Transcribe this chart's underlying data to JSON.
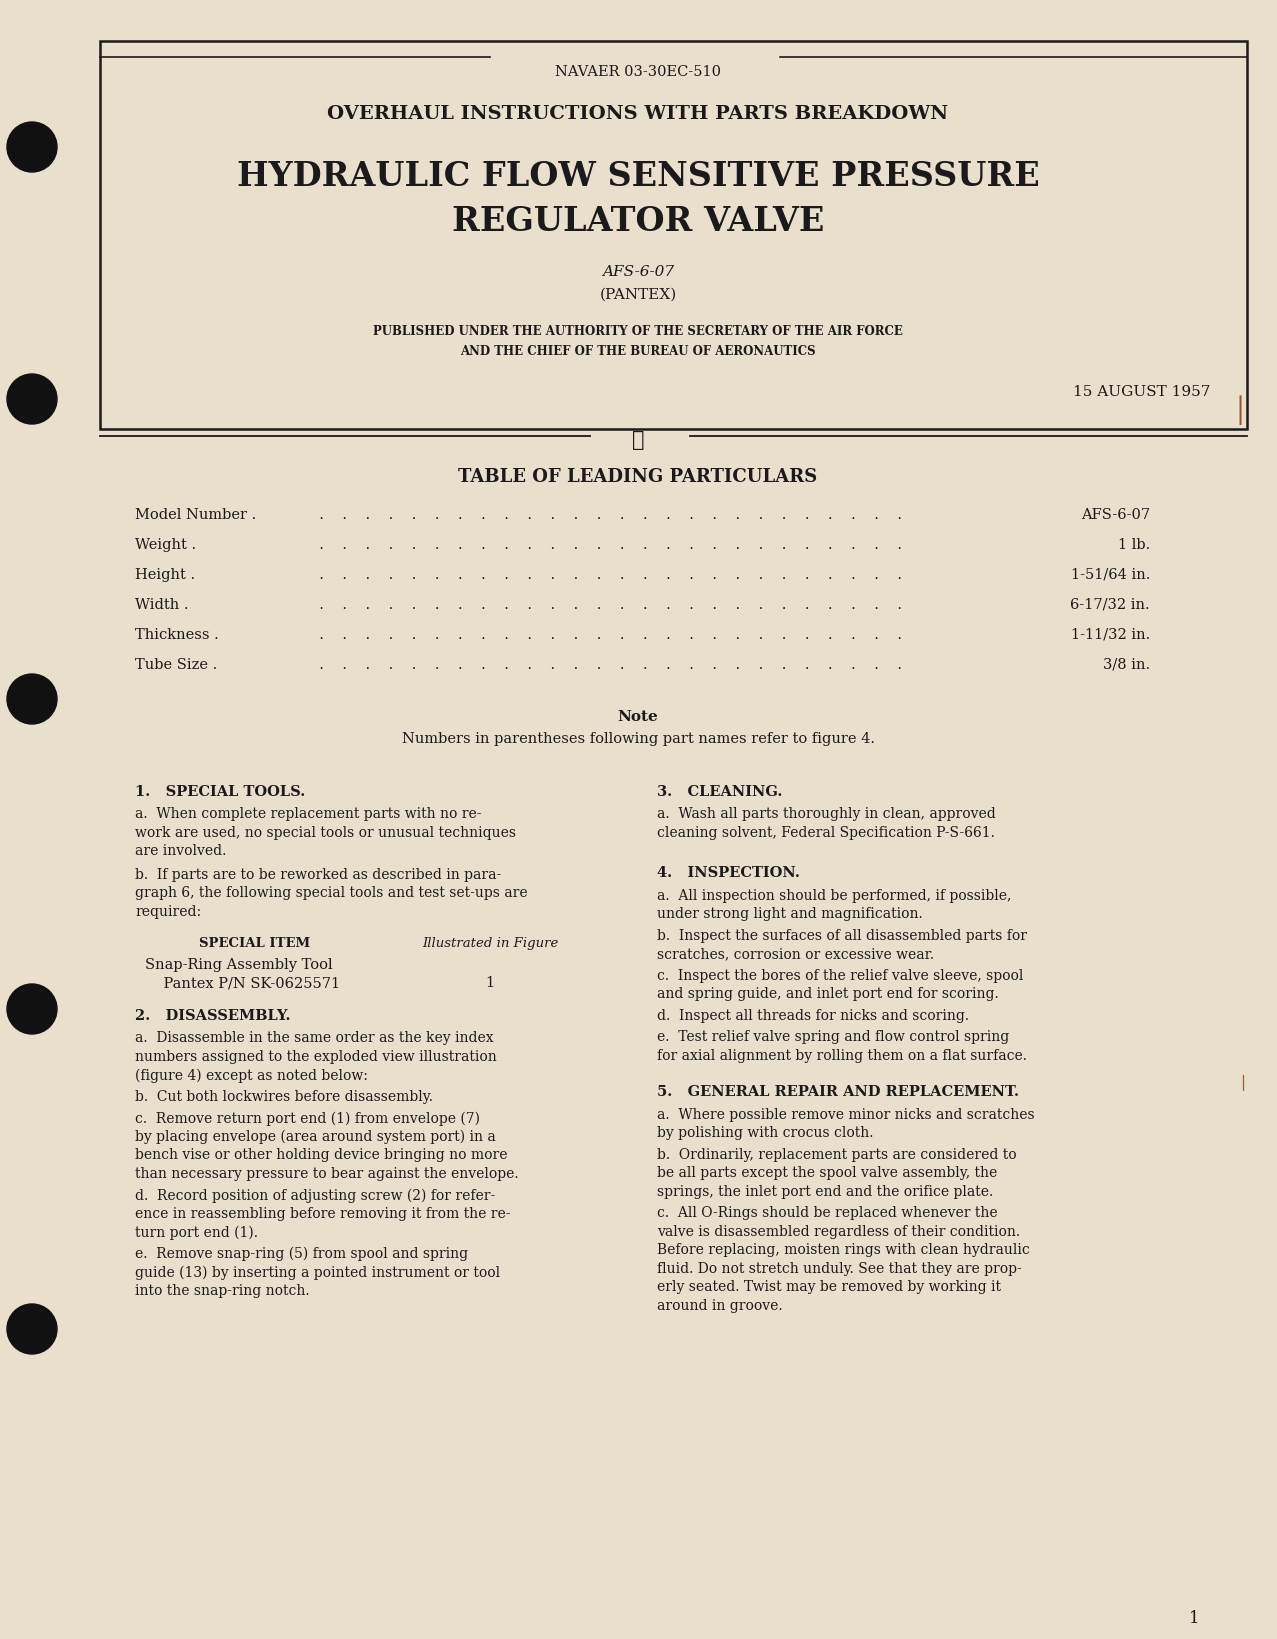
{
  "page_bg": "#e8e0cc",
  "text_color": "#1a1a1a",
  "border_color": "#1a1a1a",
  "header_doc_num": "NAVAER 03-30EC-510",
  "title_line1": "OVERHAUL INSTRUCTIONS WITH PARTS BREAKDOWN",
  "title_line2": "HYDRAULIC FLOW SENSITIVE PRESSURE",
  "title_line3": "REGULATOR VALVE",
  "subtitle1": "AFS-6-07",
  "subtitle2": "(PANTEX)",
  "authority_line1": "PUBLISHED UNDER THE AUTHORITY OF THE SECRETARY OF THE AIR FORCE",
  "authority_line2": "AND THE CHIEF OF THE BUREAU OF AERONAUTICS",
  "date": "15 AUGUST 1957",
  "table_heading": "TABLE OF LEADING PARTICULARS",
  "particulars": [
    [
      "Model Number",
      "AFS-6-07"
    ],
    [
      "Weight",
      "1 lb."
    ],
    [
      "Height",
      "1-51/64 in."
    ],
    [
      "Width",
      "6-17/32 in."
    ],
    [
      "Thickness",
      "1-11/32 in."
    ],
    [
      "Tube Size",
      "3/8 in."
    ]
  ],
  "note_label": "Note",
  "note_text": "Numbers in parentheses following part names refer to figure 4.",
  "section1_heading": "1.   SPECIAL TOOLS.",
  "section1_para_a": "a.  When complete replacement parts with no re-\nwork are used, no special tools or unusual techniques\nare involved.",
  "section1_para_b": "b.  If parts are to be reworked as described in para-\ngraph 6, the following special tools and test set-ups are\nrequired:",
  "special_item_col1": "SPECIAL ITEM",
  "special_item_col2": "Illustrated in Figure",
  "special_item_row1a": "Snap-Ring Assembly Tool",
  "special_item_row1b": "    Pantex P/N SK-0625571",
  "special_item_row1c": "1",
  "section2_heading": "2.   DISASSEMBLY.",
  "section2_para_a": "a.  Disassemble in the same order as the key index\nnumbers assigned to the exploded view illustration\n(figure 4) except as noted below:",
  "section2_para_b": "b.  Cut both lockwires before disassembly.",
  "section2_para_c": "c.  Remove return port end (1) from envelope (7)\nby placing envelope (area around system port) in a\nbench vise or other holding device bringing no more\nthan necessary pressure to bear against the envelope.",
  "section2_para_d": "d.  Record position of adjusting screw (2) for refer-\nence in reassembling before removing it from the re-\nturn port end (1).",
  "section2_para_e": "e.  Remove snap-ring (5) from spool and spring\nguide (13) by inserting a pointed instrument or tool\ninto the snap-ring notch.",
  "section3_heading": "3.   CLEANING.",
  "section3_para_a": "a.  Wash all parts thoroughly in clean, approved\ncleaning solvent, Federal Specification P-S-661.",
  "section4_heading": "4.   INSPECTION.",
  "section4_para_a": "a.  All inspection should be performed, if possible,\nunder strong light and magnification.",
  "section4_para_b": "b.  Inspect the surfaces of all disassembled parts for\nscratches, corrosion or excessive wear.",
  "section4_para_c": "c.  Inspect the bores of the relief valve sleeve, spool\nand spring guide, and inlet port end for scoring.",
  "section4_para_d": "d.  Inspect all threads for nicks and scoring.",
  "section4_para_e": "e.  Test relief valve spring and flow control spring\nfor axial alignment by rolling them on a flat surface.",
  "section5_heading": "5.   GENERAL REPAIR AND REPLACEMENT.",
  "section5_para_a": "a.  Where possible remove minor nicks and scratches\nby polishing with crocus cloth.",
  "section5_para_b": "b.  Ordinarily, replacement parts are considered to\nbe all parts except the spool valve assembly, the\nsprings, the inlet port end and the orifice plate.",
  "section5_para_c": "c.  All O-Rings should be replaced whenever the\nvalve is disassembled regardless of their condition.\nBefore replacing, moisten rings with clean hydraulic\nfluid. Do not stretch unduly. See that they are prop-\nerly seated. Twist may be removed by working it\naround in groove.",
  "page_number": "1",
  "dot_color": "#111111",
  "rust_color": "#8B3A10"
}
